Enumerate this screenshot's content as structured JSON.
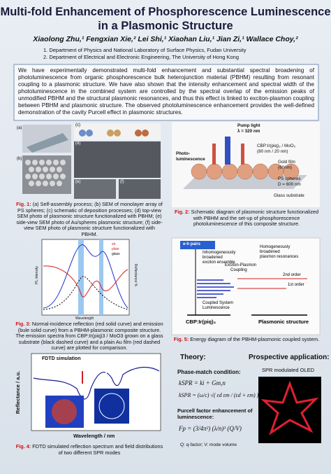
{
  "header": {
    "title_lines": [
      "Multi-fold Enhancement of Phosphorescence Luminescence",
      "in a Plasmonic Structure"
    ],
    "authors": "Xiaolong Zhu,¹ Fengxian Xie,² Lei Shi,¹ Xiaohan Liu,¹ Jian Zi,¹ Wallace Choy,²",
    "affiliations": [
      "1.   Department of Physics and National Laboratory of Surface Physics, Fudan University",
      "2.   Department of Electrical and Electronic Engineering, The University of Hong Kong"
    ]
  },
  "abstract": "We have experimentally demonstrated multi-fold enhancement and substantial spectral broadening of photoluminescence from organic phosphorescence bulk heterojunction material (PBHM) resulting from resonant coupling to a plasmonic structure. We have also shown that the intensity enhancement and spectral width of the photoluminescence in the combined system are controlled by the spectral overlap of the emission peaks of unmodified PBHM and the structural plasmonic resonances, and thus this effect is linked to exciton-plasmon coupling between PBHM and plasmonic structure. The observed photoluminescence enhancement provides the well-defined demonstration of the cavity Purcell effect in plasmonic structures.",
  "figures": {
    "fig1": {
      "panels": [
        "(a)",
        "(b)",
        "(c)",
        "(d)",
        "(e)",
        "(f)"
      ],
      "label": "Fig. 1:",
      "caption": "(a) Self-assembly process; (b) SEM of monolayer array of PS spheres; (c) schematic of deposition processes; (d) top-view SEM photo of plasmonic structure functionalized with PBHM; (e) side-view SEM photo of Au/spheres plasmonic structure; (f) side-view SEM photo of plasmonic structure functionalized with PBHM."
    },
    "fig2": {
      "labels": [
        "Pump light",
        "λ = 320 nm",
        "Photo-",
        "luminescence",
        "CBP:Ir(piq)₃ / MoO₃",
        "(80 nm / 20 nm)",
        "Gold film",
        "(60nm)",
        "PS spheres",
        "D = 600 nm",
        "Glass substrate"
      ],
      "label": "Fig. 2:",
      "caption": "Schematic diagram of plasmonic structure functionalized with PBHM and the set-up of phosphorescence photoluminescence of this composite structure."
    },
    "fig3": {
      "y_label": "PL intensity",
      "y2_label": "Reflectance %",
      "x_label": "Wavelength",
      "legend": [
        "str",
        "plain",
        "glass"
      ],
      "label": "Fig. 3:",
      "caption": "Normal-incidence reflection (red solid curve) and emission (bule solid curve) from a PBHM-plasmonic composite structure. The emission spectra from CBP:Ir(piq)3 / MoO3 grown on a glass substrate (black dashed curve) and a plain Au film (red dashed curve) are plotted for comparison."
    },
    "fig4": {
      "title": "FDTD simulation",
      "y_label": "Reflectance / a.u.",
      "x_label": "Wavelength / nm",
      "label": "Fig. 4:",
      "caption": "FDTD simulated reflection spectrum and field distributions of two different SPR modes"
    },
    "fig5": {
      "labels": [
        "e-h pairs",
        "Inhomogeneously",
        "broadened",
        "exciton ensemble",
        "Homogeneously",
        "broadened",
        "plasmon resonances",
        "Exciton-Plasmon",
        "Coupling",
        "2nd order",
        "1st order",
        "Coupled System",
        "Luminescence",
        "CBP:Ir(piq)₃",
        "Plasmonic structure"
      ],
      "label": "Fig. 5:",
      "caption": "Energy diagram of the PBHM-plasmonic coupled system."
    }
  },
  "theory": {
    "heading": "Theory:",
    "phase_match": "Phase-match condition:",
    "eq1": "kSPR = ki + Gm,n",
    "eq2": "kSPR = (ω/c) √( εd εm / (εd + εm) )",
    "purcell": "Purcell factor enhancement of luminescence:",
    "eq3": "Fp = (3/4π²) (λ/n)³ (Q/V)",
    "note": "Q: q-factor; V: mode volume"
  },
  "application": {
    "heading": "Prospective application:",
    "subtitle": "SPR modulated OLED"
  }
}
